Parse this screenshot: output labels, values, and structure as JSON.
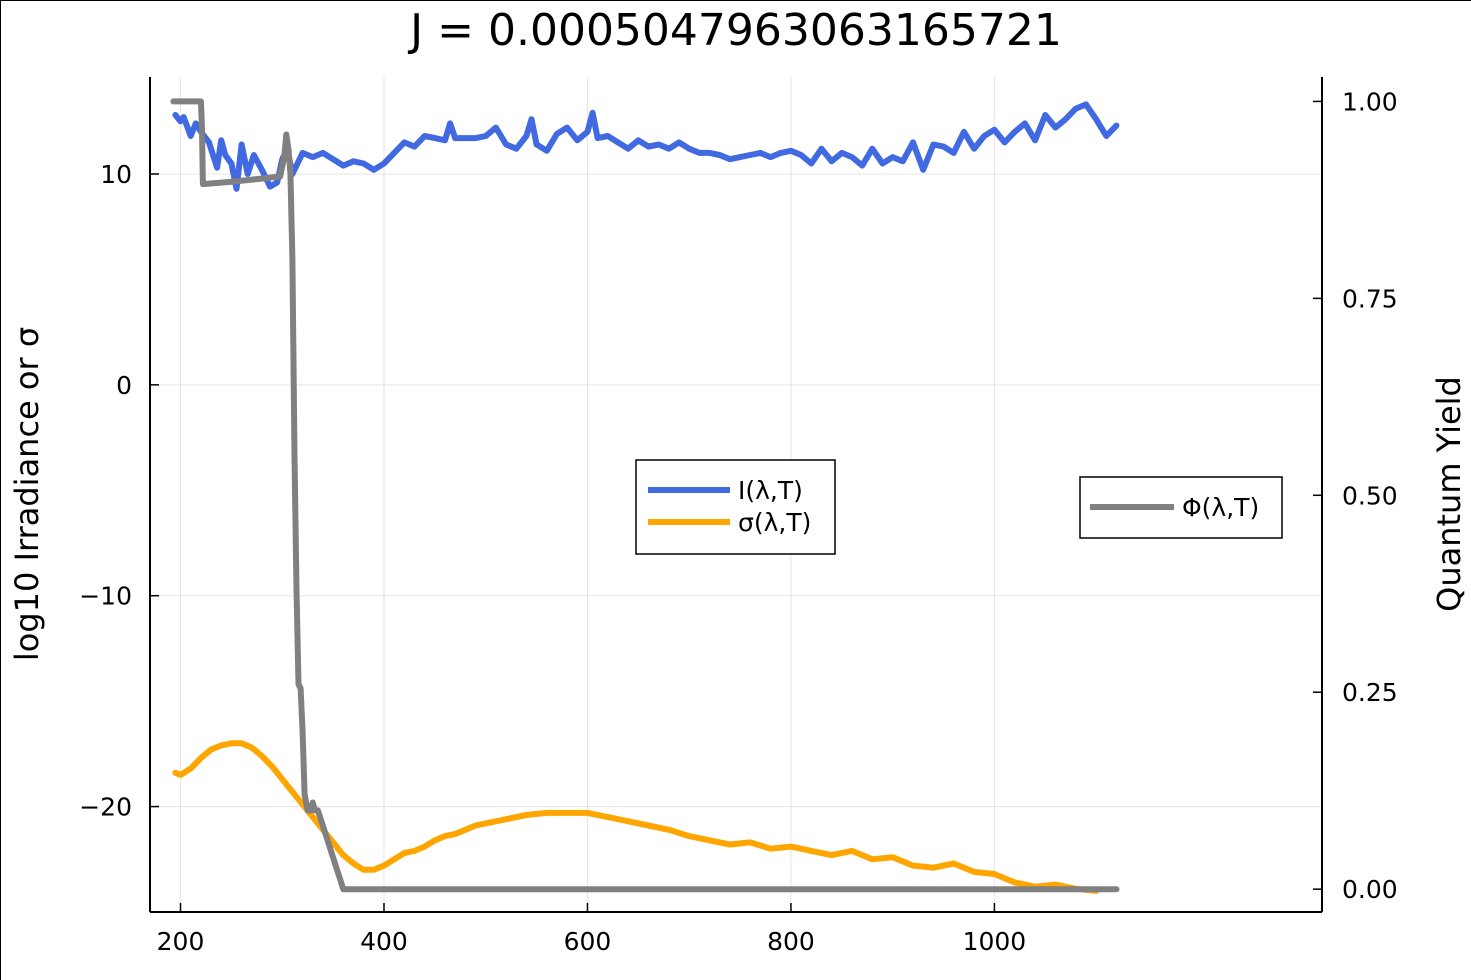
{
  "chart_data": {
    "type": "line",
    "title": "J = 0.0005047963063165721",
    "xlabel": "",
    "ylabel": "log10 Irradiance or σ",
    "y2label": "Quantum Yield",
    "xlim": [
      170,
      1322
    ],
    "ylim": [
      -25.0,
      14.6
    ],
    "y2lim": [
      -0.029,
      1.031
    ],
    "xticks": [
      200,
      400,
      600,
      800,
      1000
    ],
    "xtick_labels": [
      "200",
      "400",
      "600",
      "800",
      "1000"
    ],
    "yticks": [
      10,
      0,
      -10,
      -20
    ],
    "ytick_labels": [
      "10",
      "0",
      "−10",
      "−20"
    ],
    "y2ticks": [
      1.0,
      0.75,
      0.5,
      0.25,
      0.0
    ],
    "y2tick_labels": [
      "1.00",
      "0.75",
      "0.50",
      "0.25",
      "0.00"
    ],
    "grid": true,
    "series": [
      {
        "name": "I(λ,T)",
        "axis": "left",
        "color": "#4169e1",
        "x": [
          195,
          200,
          203,
          207,
          210,
          215,
          220,
          228,
          236,
          240,
          244,
          250,
          255,
          260,
          266,
          272,
          280,
          288,
          295,
          300,
          305,
          310,
          320,
          330,
          340,
          350,
          360,
          370,
          380,
          390,
          400,
          410,
          420,
          430,
          440,
          450,
          460,
          465,
          470,
          480,
          490,
          500,
          510,
          520,
          530,
          540,
          545,
          550,
          560,
          570,
          580,
          590,
          600,
          605,
          610,
          620,
          630,
          640,
          650,
          660,
          670,
          680,
          690,
          700,
          710,
          720,
          730,
          740,
          750,
          760,
          770,
          780,
          790,
          800,
          810,
          820,
          830,
          840,
          850,
          860,
          870,
          880,
          890,
          900,
          910,
          920,
          930,
          940,
          950,
          960,
          970,
          980,
          990,
          1000,
          1010,
          1020,
          1030,
          1040,
          1050,
          1060,
          1070,
          1080,
          1090,
          1100,
          1110,
          1120
        ],
        "y": [
          12.8,
          12.5,
          12.7,
          12.2,
          11.8,
          12.4,
          12.0,
          11.5,
          10.3,
          11.6,
          10.9,
          10.5,
          9.3,
          11.4,
          10.0,
          10.9,
          10.2,
          9.4,
          9.6,
          10.7,
          11.2,
          10.0,
          11.0,
          10.8,
          11.0,
          10.7,
          10.4,
          10.6,
          10.5,
          10.2,
          10.5,
          11.0,
          11.5,
          11.3,
          11.8,
          11.7,
          11.6,
          12.4,
          11.7,
          11.7,
          11.7,
          11.8,
          12.2,
          11.4,
          11.2,
          11.8,
          12.6,
          11.4,
          11.1,
          11.9,
          12.2,
          11.6,
          12.0,
          12.9,
          11.7,
          11.8,
          11.5,
          11.2,
          11.6,
          11.3,
          11.4,
          11.2,
          11.5,
          11.2,
          11.0,
          11.0,
          10.9,
          10.7,
          10.8,
          10.9,
          11.0,
          10.8,
          11.0,
          11.1,
          10.9,
          10.5,
          11.2,
          10.6,
          11.0,
          10.8,
          10.4,
          11.2,
          10.5,
          10.8,
          10.6,
          11.5,
          10.2,
          11.4,
          11.3,
          11.0,
          12.0,
          11.2,
          11.8,
          12.1,
          11.5,
          12.0,
          12.4,
          11.6,
          12.8,
          12.2,
          12.6,
          13.1,
          13.3,
          12.6,
          11.8,
          12.3
        ]
      },
      {
        "name": "σ(λ,T)",
        "axis": "left",
        "color": "#ffa500",
        "x": [
          195,
          200,
          210,
          220,
          230,
          240,
          250,
          260,
          270,
          280,
          290,
          300,
          310,
          320,
          330,
          340,
          350,
          360,
          370,
          380,
          390,
          400,
          410,
          420,
          430,
          440,
          450,
          460,
          470,
          480,
          490,
          500,
          520,
          540,
          560,
          580,
          600,
          620,
          640,
          660,
          680,
          700,
          720,
          740,
          760,
          780,
          800,
          820,
          840,
          860,
          880,
          900,
          920,
          940,
          960,
          980,
          1000,
          1020,
          1040,
          1060,
          1080,
          1100
        ],
        "y": [
          -18.4,
          -18.5,
          -18.2,
          -17.7,
          -17.3,
          -17.1,
          -17.0,
          -17.0,
          -17.2,
          -17.6,
          -18.1,
          -18.7,
          -19.3,
          -19.9,
          -20.5,
          -21.1,
          -21.7,
          -22.3,
          -22.7,
          -23.0,
          -23.0,
          -22.8,
          -22.5,
          -22.2,
          -22.1,
          -21.9,
          -21.6,
          -21.4,
          -21.3,
          -21.1,
          -20.9,
          -20.8,
          -20.6,
          -20.4,
          -20.3,
          -20.3,
          -20.3,
          -20.5,
          -20.7,
          -20.9,
          -21.1,
          -21.4,
          -21.6,
          -21.8,
          -21.7,
          -22.0,
          -21.9,
          -22.1,
          -22.3,
          -22.1,
          -22.5,
          -22.4,
          -22.8,
          -22.9,
          -22.7,
          -23.1,
          -23.2,
          -23.6,
          -23.8,
          -23.7,
          -23.9,
          -24.0
        ]
      },
      {
        "name": "Φ(λ,T)",
        "axis": "right",
        "color": "#808080",
        "x": [
          193,
          220,
          221,
          222,
          250,
          280,
          298,
          302,
          304,
          306,
          308,
          310,
          312,
          314,
          316,
          318,
          320,
          322,
          325,
          328,
          330,
          332,
          335,
          340,
          350,
          360,
          400,
          600,
          800,
          1000,
          1120
        ],
        "y": [
          1.0,
          1.0,
          0.97,
          0.895,
          0.898,
          0.902,
          0.905,
          0.93,
          0.958,
          0.94,
          0.91,
          0.8,
          0.55,
          0.38,
          0.26,
          0.255,
          0.2,
          0.12,
          0.1,
          0.1,
          0.11,
          0.1,
          0.1,
          0.08,
          0.04,
          0.0,
          0.0,
          0.0,
          0.0,
          0.0,
          0.0
        ]
      }
    ],
    "legend": [
      {
        "placement": "center",
        "entries": [
          "I(λ,T)",
          "σ(λ,T)"
        ]
      },
      {
        "placement": "right",
        "entries": [
          "Φ(λ,T)"
        ]
      }
    ]
  }
}
